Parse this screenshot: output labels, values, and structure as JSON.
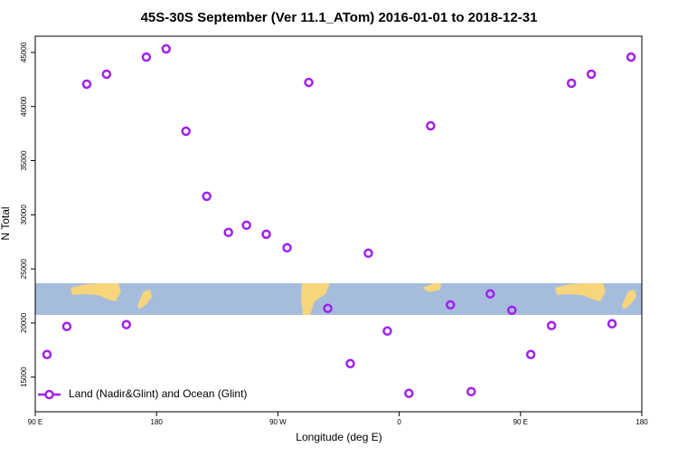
{
  "chart_data": {
    "type": "scatter",
    "title": "45S-30S September (Ver 11.1_ATom)   2016-01-01 to 2018-12-31",
    "x_label": "Longitude (deg E)",
    "y_label": "N Total",
    "xlim": [
      90,
      540
    ],
    "xticks": [
      {
        "value": 90,
        "label": "90 E"
      },
      180,
      {
        "value": 270,
        "label": "90 W"
      },
      {
        "value": 360,
        "label": "0"
      },
      {
        "value": 450,
        "label": "90 E"
      },
      {
        "value": 540,
        "label": "180"
      }
    ],
    "ylim": [
      11800,
      46500
    ],
    "yticks": [
      15000,
      20000,
      25000,
      30000,
      35000,
      40000,
      45000
    ],
    "legend": "bottom-left",
    "series": [
      {
        "name": "Land (Nadir&Glint) and Ocean (Glint)",
        "color": "#a020f0",
        "x": [
          98.7,
          113.4,
          128.2,
          142.9,
          157.6,
          172.4,
          187.1,
          201.8,
          217.2,
          233.3,
          246.7,
          261.4,
          276.8,
          292.9,
          307.0,
          323.7,
          337.1,
          351.2,
          367.2,
          383.3,
          398.0,
          413.4,
          427.5,
          443.6,
          457.6,
          473.0,
          487.8,
          502.5,
          517.9,
          532.0
        ],
        "values": [
          17090,
          19680,
          42070,
          42990,
          19850,
          44570,
          45330,
          37720,
          31710,
          28370,
          29040,
          28200,
          26950,
          42230,
          21350,
          16250,
          26450,
          19260,
          13500,
          38220,
          21680,
          13660,
          22690,
          21180,
          17090,
          19760,
          42150,
          42990,
          19930,
          44570
        ]
      }
    ]
  }
}
